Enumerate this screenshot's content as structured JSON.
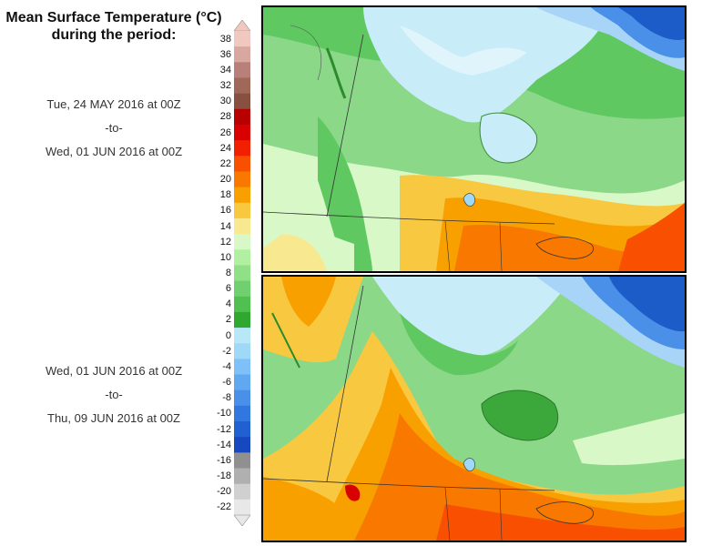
{
  "title_line1": "Mean Surface Temperature (°C)",
  "title_line2": "during the period:",
  "period1": {
    "start": "Tue, 24 MAY 2016 at 00Z",
    "sep": "-to-",
    "end": "Wed, 01 JUN 2016 at 00Z"
  },
  "period2": {
    "start": "Wed, 01 JUN 2016 at 00Z",
    "sep": "-to-",
    "end": "Thu, 09 JUN 2016 at 00Z"
  },
  "legend": {
    "labels": [
      "38",
      "36",
      "34",
      "32",
      "30",
      "28",
      "26",
      "24",
      "22",
      "20",
      "18",
      "16",
      "14",
      "12",
      "10",
      "8",
      "6",
      "4",
      "2",
      "0",
      "-2",
      "-4",
      "-6",
      "-8",
      "-10",
      "-12",
      "-14",
      "-16",
      "-18",
      "-20",
      "-22"
    ],
    "colors": [
      "#f0c8c0",
      "#d8a8a0",
      "#b88078",
      "#a06858",
      "#885040",
      "#b80000",
      "#d80000",
      "#f02000",
      "#f85000",
      "#f87800",
      "#f8a000",
      "#f8c840",
      "#f8e890",
      "#d8f8c8",
      "#b0f0a0",
      "#90e088",
      "#70d070",
      "#50c050",
      "#30a830",
      "#b8e8f8",
      "#a0d8f8",
      "#80c0f8",
      "#60a8f0",
      "#4890e8",
      "#3078e0",
      "#2060d0",
      "#1848c0",
      "#909090",
      "#b0b0b0",
      "#d0d0d0",
      "#e8e8e8"
    ]
  }
}
